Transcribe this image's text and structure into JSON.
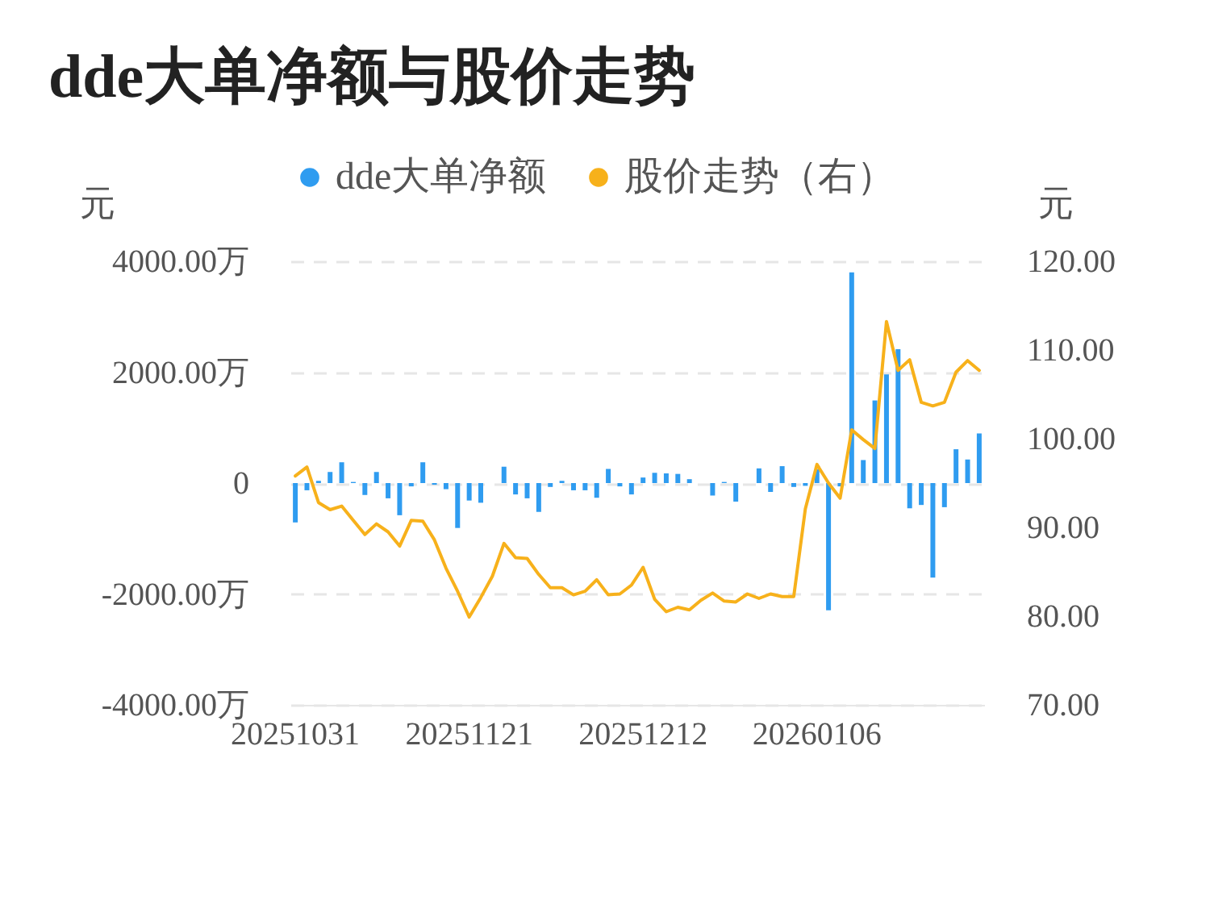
{
  "chart_data": {
    "type": "bar",
    "title": "dde大单净额与股价走势",
    "categories": [
      "20251031",
      null,
      null,
      null,
      null,
      null,
      null,
      null,
      null,
      null,
      null,
      null,
      null,
      null,
      null,
      "20251121",
      null,
      null,
      null,
      null,
      null,
      null,
      null,
      null,
      null,
      null,
      null,
      null,
      null,
      null,
      "20251212",
      null,
      null,
      null,
      null,
      null,
      null,
      null,
      null,
      null,
      null,
      null,
      null,
      null,
      null,
      "20260106",
      null,
      null,
      null,
      null,
      null,
      null,
      null,
      null,
      null,
      null,
      null,
      null,
      null,
      null
    ],
    "series": [
      {
        "name": "dde大单净额",
        "color": "#2f9cf0",
        "values": [
          -710,
          -130,
          40,
          200,
          375,
          20,
          -215,
          200,
          -275,
          -580,
          -60,
          375,
          -30,
          -110,
          -810,
          -315,
          -355,
          null,
          295,
          -205,
          -275,
          -520,
          -70,
          40,
          -130,
          -130,
          -265,
          255,
          -60,
          -205,
          100,
          185,
          175,
          165,
          70,
          null,
          -225,
          20,
          -335,
          null,
          265,
          -160,
          305,
          -70,
          -50,
          250,
          -2295,
          -60,
          3800,
          415,
          1490,
          1960,
          2415,
          -455,
          -395,
          -1705,
          -435,
          610,
          425,
          895
        ]
      },
      {
        "name": "股价走势（右）",
        "type": "line",
        "axis": "y2",
        "color": "#f7b11b",
        "values": [
          95.8,
          96.8,
          92.8,
          92.0,
          92.4,
          90.8,
          89.2,
          90.4,
          89.5,
          87.9,
          90.8,
          90.7,
          88.6,
          85.4,
          82.8,
          79.9,
          82.1,
          84.5,
          88.2,
          86.6,
          86.5,
          84.7,
          83.2,
          83.2,
          82.4,
          82.8,
          84.1,
          82.4,
          82.5,
          83.5,
          85.5,
          81.9,
          80.5,
          81.0,
          80.7,
          81.8,
          82.6,
          81.7,
          81.6,
          82.5,
          82.0,
          82.5,
          82.2,
          82.2,
          92.1,
          97.1,
          95.0,
          93.3,
          101.0,
          99.9,
          98.9,
          113.2,
          107.7,
          108.9,
          104.1,
          103.7,
          104.1,
          107.5,
          108.8,
          107.7
        ]
      }
    ],
    "ylabel": "元",
    "y2label": "元",
    "ylim": [
      -4000,
      4000
    ],
    "yticks": [
      {
        "value": -4000,
        "label": "-4000.00万"
      },
      {
        "value": -2000,
        "label": "-2000.00万"
      },
      0,
      {
        "value": 2000,
        "label": "2000.00万"
      },
      {
        "value": 4000,
        "label": "4000.00万"
      }
    ],
    "y2lim": [
      70,
      120
    ],
    "y2ticks": [
      {
        "value": 70,
        "label": "70.00"
      },
      {
        "value": 80,
        "label": "80.00"
      },
      {
        "value": 90,
        "label": "90.00"
      },
      {
        "value": 100,
        "label": "100.00"
      },
      {
        "value": 110,
        "label": "110.00"
      },
      {
        "value": 120,
        "label": "120.00"
      }
    ],
    "grid": "y",
    "legend": "top"
  }
}
